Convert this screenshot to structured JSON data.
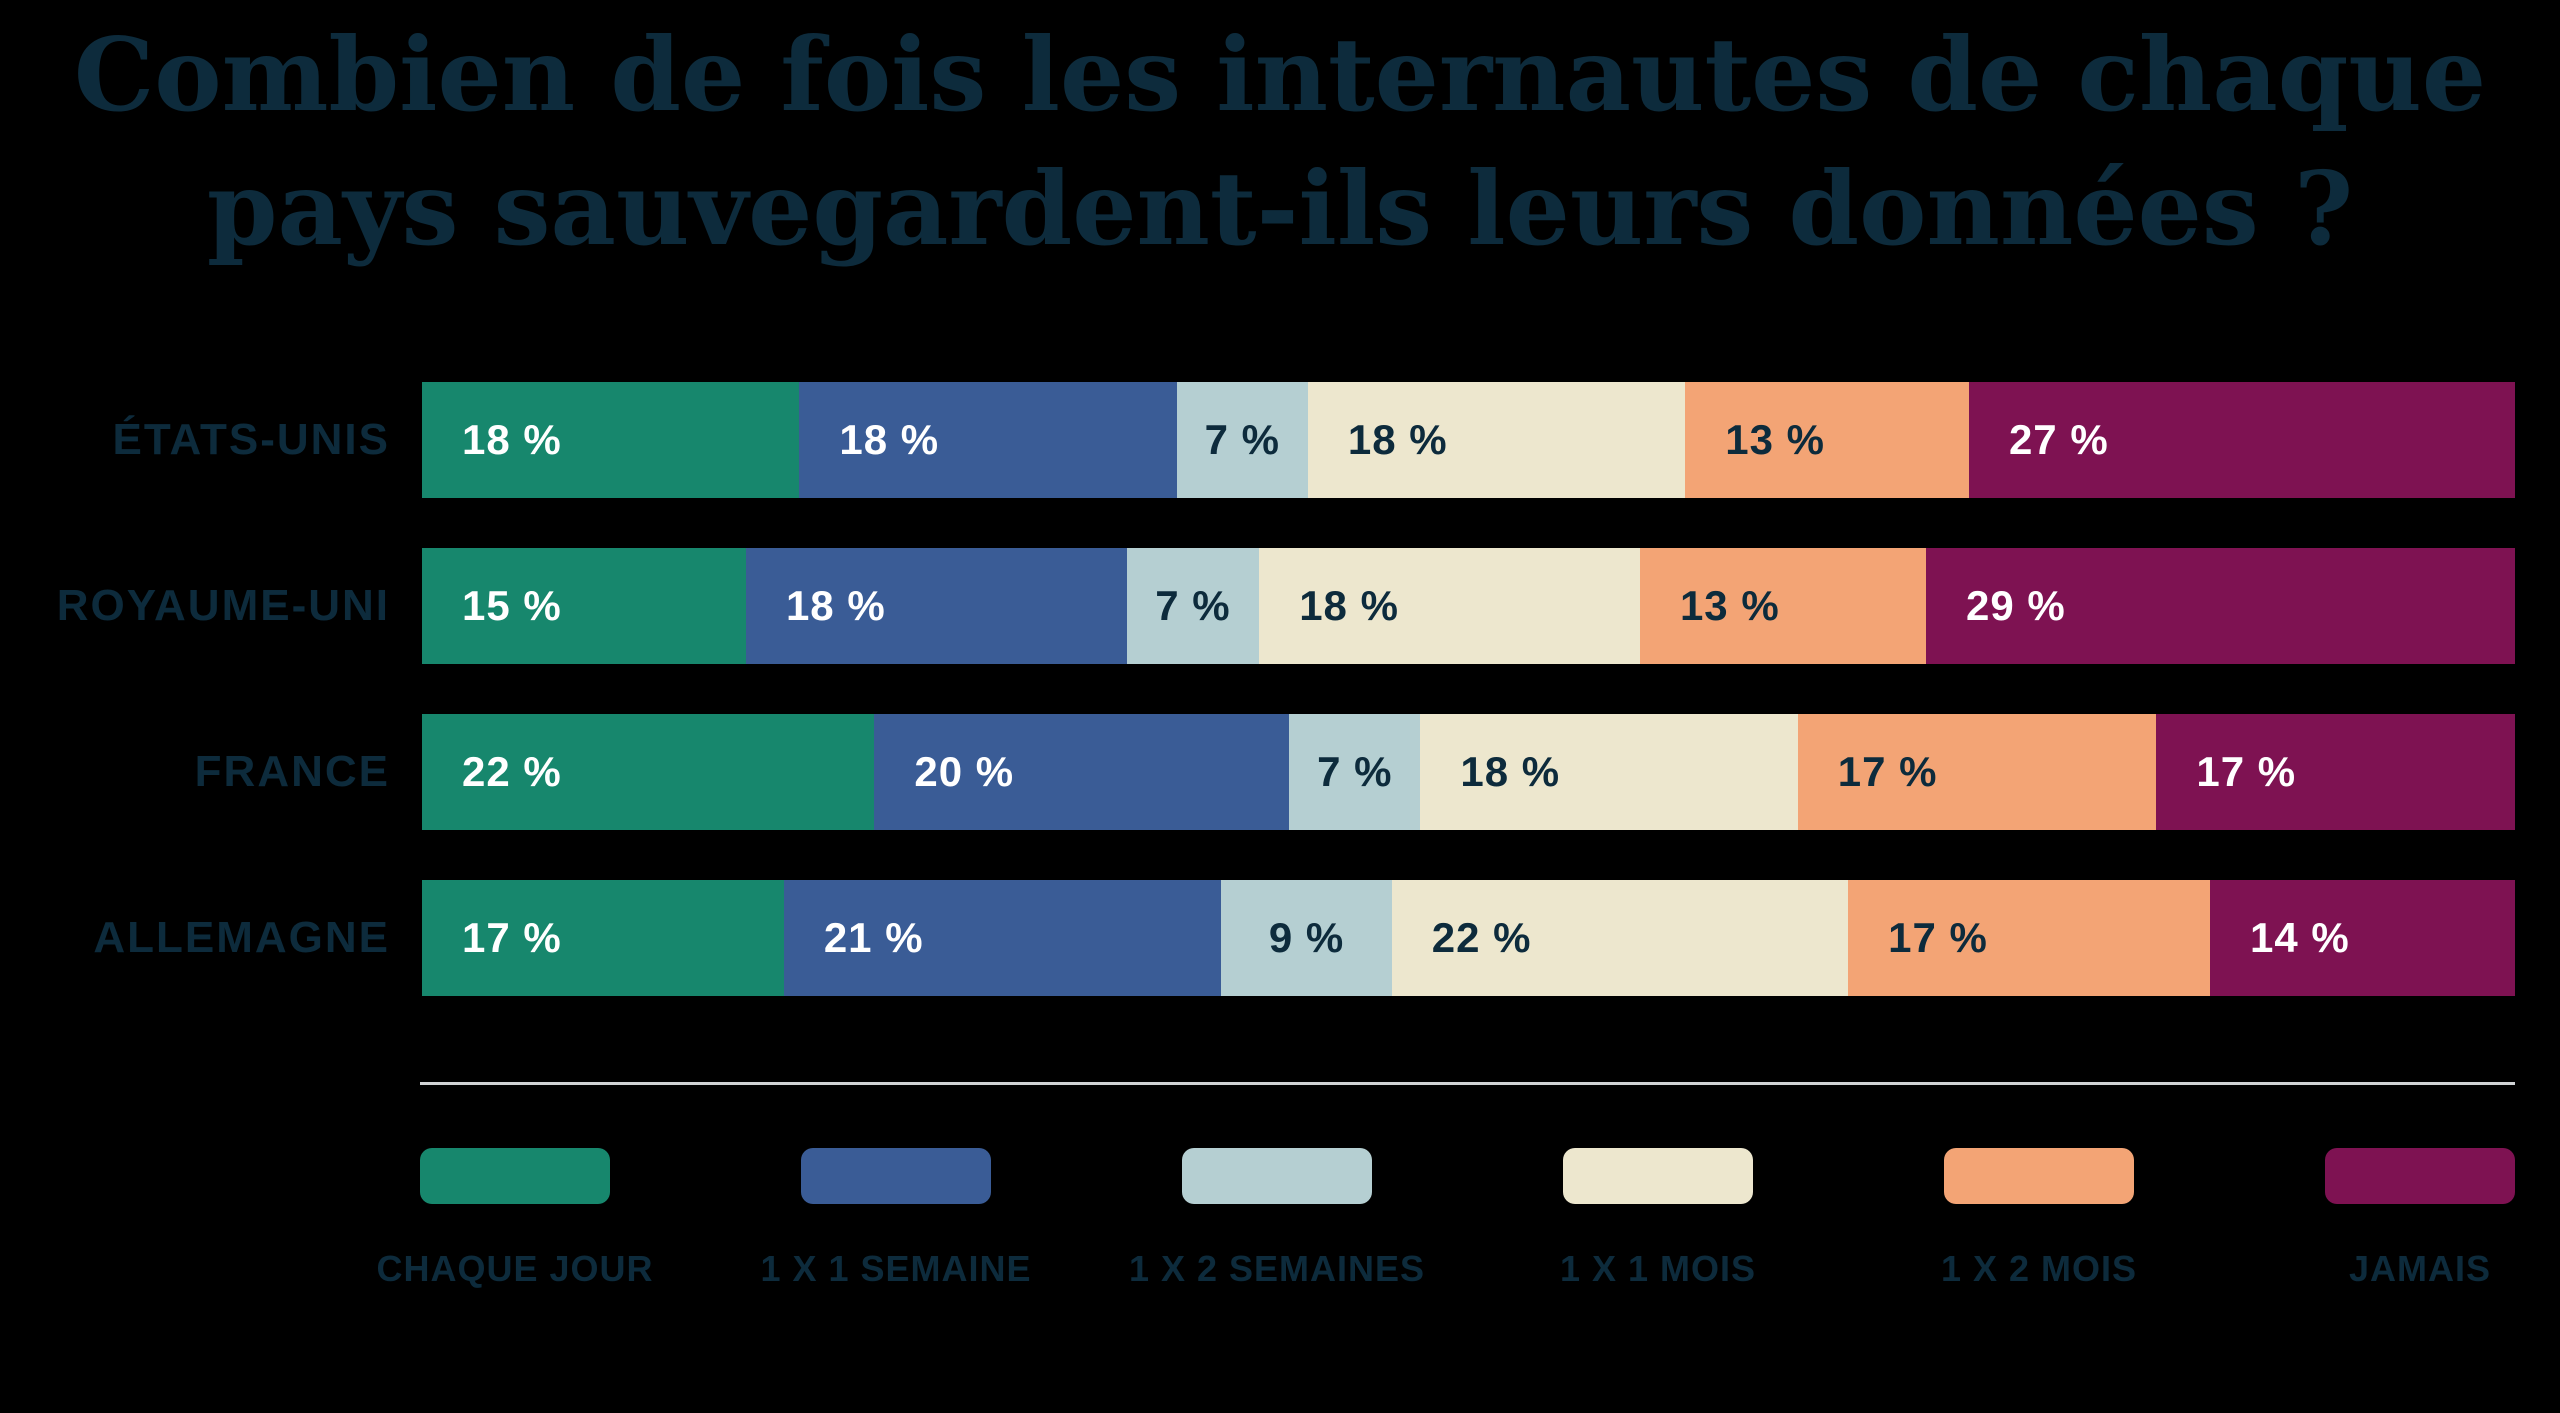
{
  "title": {
    "line1": "Combien de fois les internautes de chaque",
    "line2": "pays sauvegardent-ils leurs données ?"
  },
  "colors": {
    "background": "#000000",
    "title_text": "#0D2B3C",
    "label_text": "#0D2B3C",
    "divider": "#D0D3D5",
    "value_text_light": "#FFFFFF",
    "value_text_dark": "#0D2B3C"
  },
  "chart_data": {
    "type": "bar",
    "stacked": true,
    "orientation": "horizontal",
    "title": "Combien de fois les internautes de chaque pays sauvegardent-ils leurs données ?",
    "value_suffix": " %",
    "legend_position": "bottom",
    "grid": false,
    "categories": [
      "ÉTATS-UNIS",
      "ROYAUME-UNI",
      "FRANCE",
      "ALLEMAGNE"
    ],
    "series": [
      {
        "name": "CHAQUE JOUR",
        "color": "#17876D",
        "text_color": "#FFFFFF",
        "values": [
          18,
          15,
          22,
          17
        ]
      },
      {
        "name": "1 X 1 SEMAINE",
        "color": "#3A5C96",
        "text_color": "#FFFFFF",
        "values": [
          18,
          18,
          20,
          21
        ]
      },
      {
        "name": "1 X 2 SEMAINES",
        "color": "#B5CFD2",
        "text_color": "#0D2B3C",
        "values": [
          7,
          7,
          7,
          9
        ]
      },
      {
        "name": "1 X 1 MOIS",
        "color": "#EDE7CE",
        "text_color": "#0D2B3C",
        "values": [
          18,
          18,
          18,
          22
        ]
      },
      {
        "name": "1 X 2 MOIS",
        "color": "#F3A475",
        "text_color": "#0D2B3C",
        "values": [
          13,
          13,
          17,
          17
        ]
      },
      {
        "name": "JAMAIS",
        "color": "#7E1252",
        "text_color": "#FFFFFF",
        "values": [
          27,
          29,
          17,
          14
        ]
      }
    ]
  }
}
